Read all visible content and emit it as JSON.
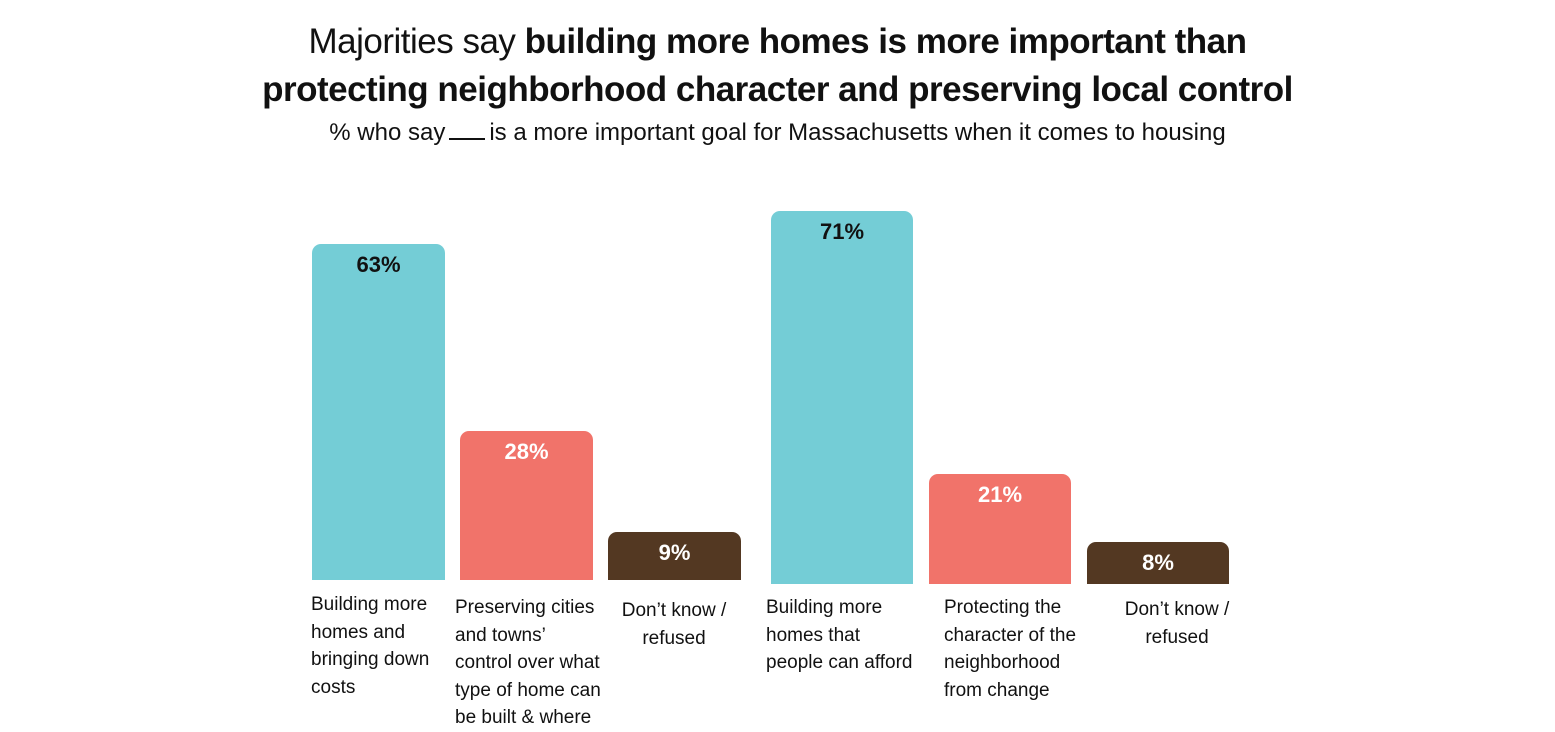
{
  "title": {
    "light": "Majorities say ",
    "bold_1": "building more homes is more important than",
    "bold_2": "protecting neighborhood character and preserving local control"
  },
  "subtitle": {
    "before": "% who say",
    "after": "is a more important goal for Massachusetts when it comes to housing"
  },
  "colors": {
    "teal": "#74CDD6",
    "coral": "#F1736A",
    "brown": "#533822"
  },
  "chart_data": [
    {
      "type": "bar",
      "categories": [
        "Building more\nhomes and\nbringing down\n costs",
        "Preserving cities\nand towns’\ncontrol over what\ntype of home can\nbe built & where",
        "Don’t know /\nrefused"
      ],
      "values": [
        63,
        28,
        9
      ],
      "value_labels": [
        "63%",
        "28%",
        "9%"
      ],
      "bar_colors": [
        "#74CDD6",
        "#F1736A",
        "#533822"
      ],
      "label_colors": [
        "#111111",
        "#ffffff",
        "#ffffff"
      ],
      "ylim": [
        0,
        100
      ]
    },
    {
      "type": "bar",
      "categories": [
        "Building more\nhomes that\npeople can afford",
        "Protecting the\ncharacter of the\nneighborhood\nfrom change",
        "Don’t know /\nrefused"
      ],
      "values": [
        71,
        21,
        8
      ],
      "value_labels": [
        "71%",
        "21%",
        "8%"
      ],
      "bar_colors": [
        "#74CDD6",
        "#F1736A",
        "#533822"
      ],
      "label_colors": [
        "#111111",
        "#ffffff",
        "#ffffff"
      ],
      "ylim": [
        0,
        100
      ]
    }
  ]
}
